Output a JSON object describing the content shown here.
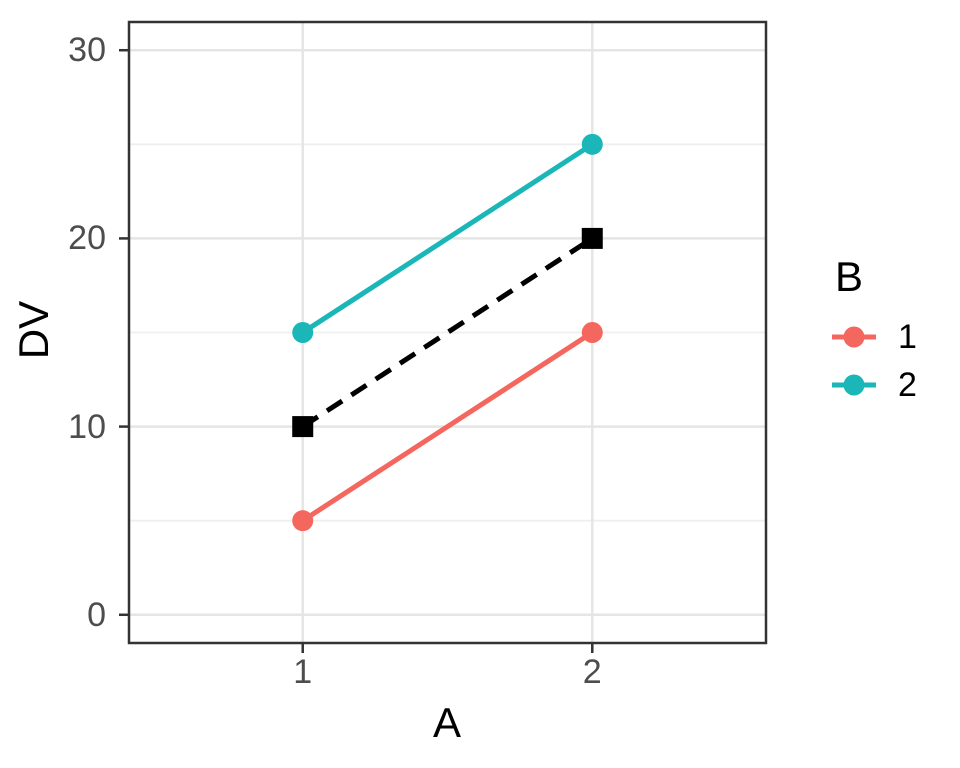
{
  "chart_data": {
    "type": "line",
    "title": "",
    "xlabel": "A",
    "ylabel": "DV",
    "x_tick_labels": [
      "1",
      "2"
    ],
    "x_positions": [
      1,
      2
    ],
    "xlim": [
      0.4,
      2.6
    ],
    "y_ticks": [
      0,
      10,
      20,
      30
    ],
    "y_minor_ticks": [
      5,
      15,
      25
    ],
    "ylim": [
      -1.5,
      31.5
    ],
    "grid": true,
    "legend_position": "right",
    "series": [
      {
        "name": "B = 1",
        "legend_label": "1",
        "x": [
          1,
          2
        ],
        "values": [
          5,
          15
        ],
        "color": "#F4675E",
        "line": "solid",
        "marker": "circle",
        "in_legend": true
      },
      {
        "name": "B = 2",
        "legend_label": "2",
        "x": [
          1,
          2
        ],
        "values": [
          15,
          25
        ],
        "color": "#1AB6B8",
        "line": "solid",
        "marker": "circle",
        "in_legend": true
      },
      {
        "name": "average",
        "legend_label": "",
        "x": [
          1,
          2
        ],
        "values": [
          10,
          20
        ],
        "color": "#000000",
        "line": "dashed",
        "marker": "square",
        "in_legend": false
      }
    ],
    "legend": {
      "title": "B",
      "entries": [
        {
          "label": "1",
          "color": "#F4675E"
        },
        {
          "label": "2",
          "color": "#1AB6B8"
        }
      ]
    },
    "colors": {
      "tick_label": "#4d4d4d",
      "axis_title": "#000000",
      "panel_border": "#333333",
      "tick_mark": "#333333",
      "grid_major": "#E5E5E5",
      "grid_minor": "#EFEFEF",
      "background": "#ffffff"
    }
  }
}
